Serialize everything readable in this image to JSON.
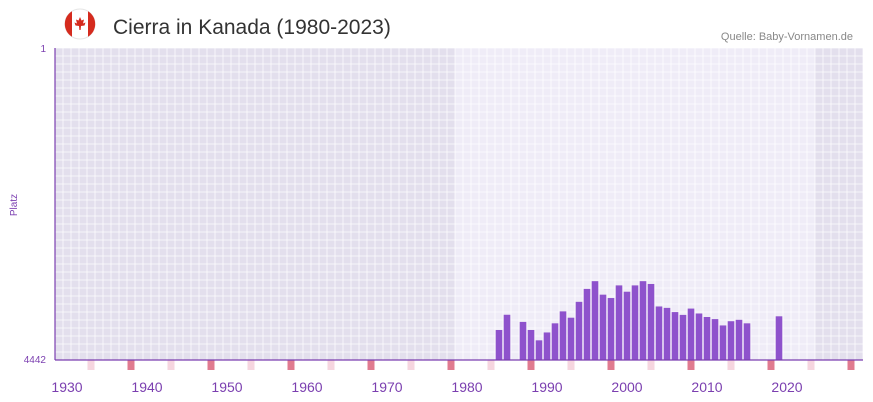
{
  "header": {
    "title": "Cierra in Kanada (1980-2023)",
    "source": "Quelle: Baby-Vornamen.de",
    "flag_icon": "canada-flag-icon"
  },
  "colors": {
    "bar": "#8e52cc",
    "axis": "#7b3fb0",
    "bg_outside": "#e3dfed",
    "bg_inside": "#efecf7",
    "decade_marker": "#e07b8f",
    "minor_marker": "#f6d6df"
  },
  "chart_data": {
    "type": "bar",
    "title": "Cierra in Kanada (1980-2023)",
    "xlabel": "",
    "ylabel": "Platz",
    "y_axis_inverted": true,
    "ylim": [
      1,
      4442
    ],
    "yticks": [
      "1",
      "4442"
    ],
    "xlim": [
      1929,
      2029
    ],
    "highlight_range": [
      1979,
      2023
    ],
    "xticks": [
      1930,
      1940,
      1950,
      1960,
      1970,
      1980,
      1990,
      2000,
      2010,
      2020
    ],
    "x": [
      1984,
      1985,
      1987,
      1988,
      1989,
      1990,
      1991,
      1992,
      1993,
      1994,
      1995,
      1996,
      1997,
      1998,
      1999,
      2000,
      2001,
      2002,
      2003,
      2004,
      2005,
      2006,
      2007,
      2008,
      2009,
      2010,
      2011,
      2012,
      2013,
      2014,
      2015,
      2019
    ],
    "values": [
      4015,
      3798,
      3900,
      4015,
      4162,
      4050,
      3920,
      3750,
      3840,
      3614,
      3430,
      3320,
      3512,
      3560,
      3380,
      3470,
      3380,
      3320,
      3360,
      3680,
      3700,
      3760,
      3800,
      3710,
      3780,
      3830,
      3860,
      3950,
      3890,
      3870,
      3920,
      3820
    ]
  }
}
